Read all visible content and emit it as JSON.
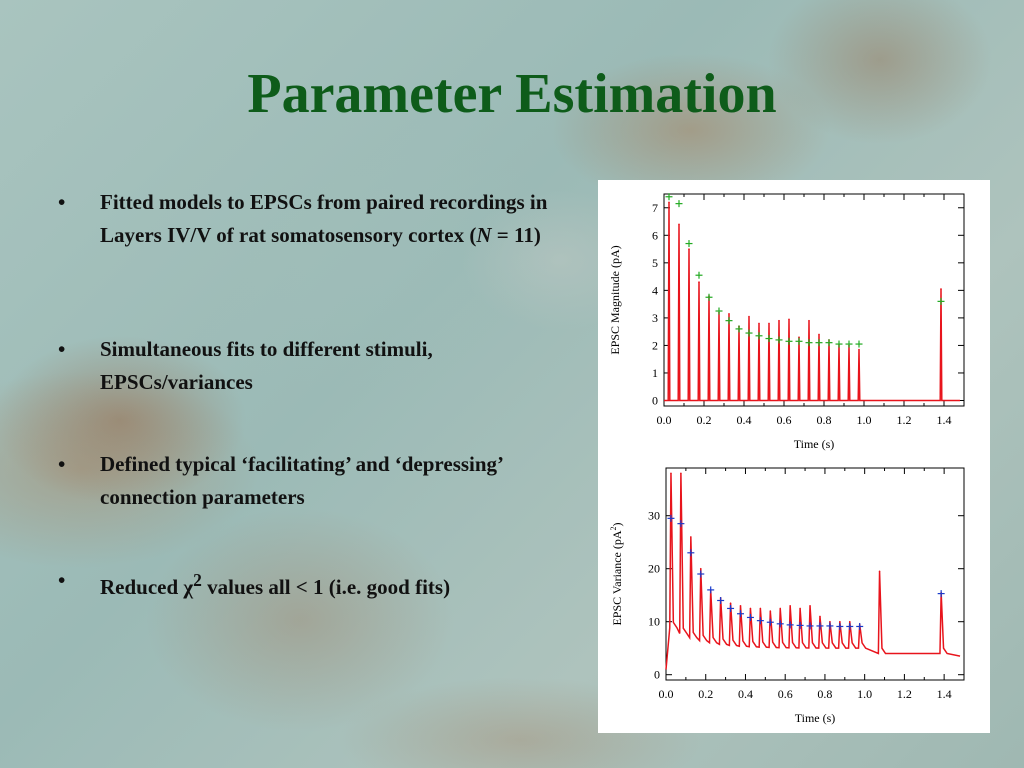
{
  "slide": {
    "title": "Parameter Estimation",
    "bullets": [
      {
        "pre": "Fitted models to EPSCs from paired recordings in Layers IV/V of rat somatosensory cortex (",
        "em": "N",
        "post": " = 11)"
      },
      {
        "pre": "Simultaneous fits to different stimuli, EPSCs/variances",
        "em": "",
        "post": ""
      },
      {
        "pre": "Defined typical ‘facilitating’ and ‘depressing’ connection parameters",
        "em": "",
        "post": ""
      },
      {
        "pre": "Reduced ",
        "chi": "χ",
        "sup": "2",
        "post": " values all < 1 (i.e. good fits)"
      }
    ],
    "bullet_symbol": "•"
  },
  "colors": {
    "title": "#0e5c1a",
    "trace": "#e8141c",
    "fit_mag": "#22aa22",
    "fit_var": "#1a3ccc"
  },
  "chart_data": [
    {
      "type": "line",
      "title": "",
      "xlabel": "Time (s)",
      "ylabel": "EPSC Magnitude (pA)",
      "xlim": [
        0,
        1.5
      ],
      "ylim": [
        -0.2,
        7.5
      ],
      "xticks": [
        "0.0",
        "0.2",
        "0.4",
        "0.6",
        "0.8",
        "1.0",
        "1.2",
        "1.4"
      ],
      "yticks": [
        "0",
        "1",
        "2",
        "3",
        "4",
        "5",
        "6",
        "7"
      ],
      "xtick_values": [
        0,
        0.2,
        0.4,
        0.6,
        0.8,
        1.0,
        1.2,
        1.4
      ],
      "ytick_values": [
        0,
        1,
        2,
        3,
        4,
        5,
        6,
        7
      ],
      "series": [
        {
          "kind": "peaks",
          "x": [
            0.025,
            0.075,
            0.125,
            0.175,
            0.225,
            0.275,
            0.325,
            0.375,
            0.425,
            0.475,
            0.525,
            0.575,
            0.625,
            0.675,
            0.725,
            0.775,
            0.825,
            0.875,
            0.925,
            0.975,
            1.385
          ],
          "y": [
            7.2,
            6.4,
            5.5,
            4.3,
            3.8,
            3.2,
            3.15,
            2.7,
            3.05,
            2.8,
            2.8,
            2.9,
            2.95,
            2.3,
            2.9,
            2.4,
            2.2,
            2.05,
            2.0,
            1.85,
            4.05
          ]
        },
        {
          "kind": "fit-markers",
          "x": [
            0.025,
            0.075,
            0.125,
            0.175,
            0.225,
            0.275,
            0.325,
            0.375,
            0.425,
            0.475,
            0.525,
            0.575,
            0.625,
            0.675,
            0.725,
            0.775,
            0.825,
            0.875,
            0.925,
            0.975,
            1.385
          ],
          "y": [
            7.4,
            7.15,
            5.7,
            4.55,
            3.75,
            3.25,
            2.9,
            2.6,
            2.45,
            2.35,
            2.25,
            2.2,
            2.15,
            2.15,
            2.1,
            2.1,
            2.1,
            2.05,
            2.05,
            2.05,
            3.6
          ]
        }
      ]
    },
    {
      "type": "line",
      "title": "",
      "xlabel": "Time (s)",
      "ylabel": "EPSC Variance (pA",
      "ylabel_sup": "2",
      "ylabel_post": ")",
      "xlim": [
        0,
        1.5
      ],
      "ylim": [
        -1,
        39
      ],
      "xticks": [
        "0.0",
        "0.2",
        "0.4",
        "0.6",
        "0.8",
        "1.0",
        "1.2",
        "1.4"
      ],
      "yticks": [
        "0",
        "10",
        "20",
        "30"
      ],
      "xtick_values": [
        0,
        0.2,
        0.4,
        0.6,
        0.8,
        1.0,
        1.2,
        1.4
      ],
      "ytick_values": [
        0,
        10,
        20,
        30
      ],
      "series": [
        {
          "kind": "peaks",
          "x": [
            0.025,
            0.075,
            0.125,
            0.175,
            0.225,
            0.275,
            0.325,
            0.375,
            0.425,
            0.475,
            0.525,
            0.575,
            0.625,
            0.675,
            0.725,
            0.775,
            0.825,
            0.875,
            0.925,
            0.975,
            1.075,
            1.385
          ],
          "y": [
            38,
            38,
            26,
            20,
            16,
            14.5,
            13.5,
            13,
            12.5,
            12.5,
            12,
            12.5,
            13,
            12.5,
            13,
            11,
            10,
            10,
            10,
            9.5,
            19.5,
            15.5
          ]
        },
        {
          "kind": "fit-markers",
          "x": [
            0.025,
            0.075,
            0.125,
            0.175,
            0.225,
            0.275,
            0.325,
            0.375,
            0.425,
            0.475,
            0.525,
            0.575,
            0.625,
            0.675,
            0.725,
            0.775,
            0.825,
            0.875,
            0.925,
            0.975,
            1.385
          ],
          "y": [
            29.5,
            28.5,
            23,
            19,
            16,
            14,
            12.5,
            11.5,
            10.8,
            10.2,
            9.9,
            9.6,
            9.4,
            9.3,
            9.2,
            9.2,
            9.2,
            9.1,
            9.1,
            9.1,
            15.3
          ]
        }
      ]
    }
  ]
}
